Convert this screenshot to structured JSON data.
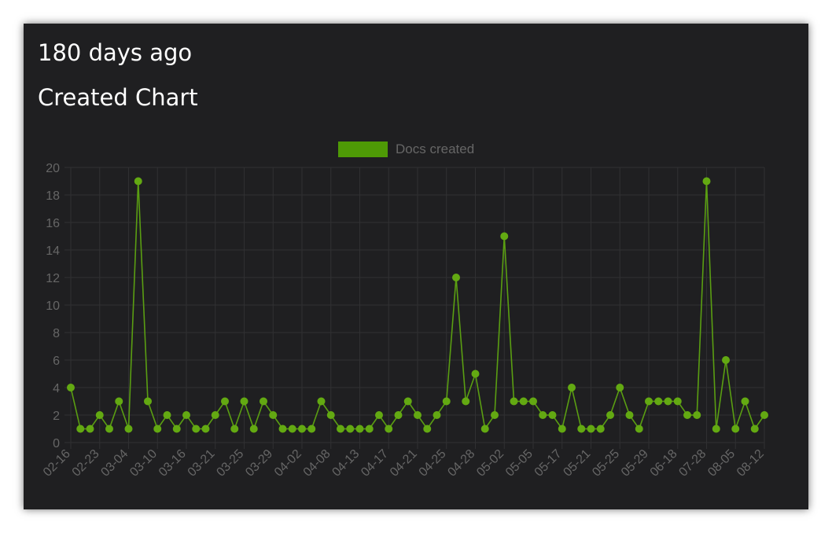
{
  "panel": {
    "period_label": "180 days ago",
    "section_title": "Created Chart"
  },
  "chart_data": {
    "type": "line",
    "legend": {
      "position": "top",
      "entries": [
        "Docs created"
      ]
    },
    "y_axis": {
      "min": 0,
      "max": 20,
      "step": 2
    },
    "grid": true,
    "colors": {
      "series": "#5a9e12",
      "point": "#63a912",
      "legend_box": "#4e9a06",
      "tick_text": "#666666",
      "grid": "#303032"
    },
    "x_tick_labels": [
      "02-16",
      "02-23",
      "03-04",
      "03-10",
      "03-16",
      "03-21",
      "03-25",
      "03-29",
      "04-02",
      "04-08",
      "04-13",
      "04-17",
      "04-21",
      "04-25",
      "04-28",
      "05-02",
      "05-05",
      "05-17",
      "05-21",
      "05-25",
      "05-29",
      "06-18",
      "07-28",
      "08-05",
      "08-12"
    ],
    "series": [
      {
        "name": "Docs created",
        "values": [
          4,
          1,
          1,
          2,
          1,
          3,
          1,
          19,
          3,
          1,
          2,
          1,
          2,
          1,
          1,
          2,
          3,
          1,
          3,
          1,
          3,
          2,
          1,
          1,
          1,
          1,
          3,
          2,
          1,
          1,
          1,
          1,
          2,
          1,
          2,
          3,
          2,
          1,
          2,
          3,
          12,
          3,
          5,
          1,
          2,
          15,
          3,
          3,
          3,
          2,
          2,
          1,
          4,
          1,
          1,
          1,
          2,
          4,
          2,
          1,
          3,
          3,
          3,
          3,
          2,
          2,
          19,
          1,
          6,
          1,
          3,
          1,
          2
        ]
      }
    ]
  }
}
